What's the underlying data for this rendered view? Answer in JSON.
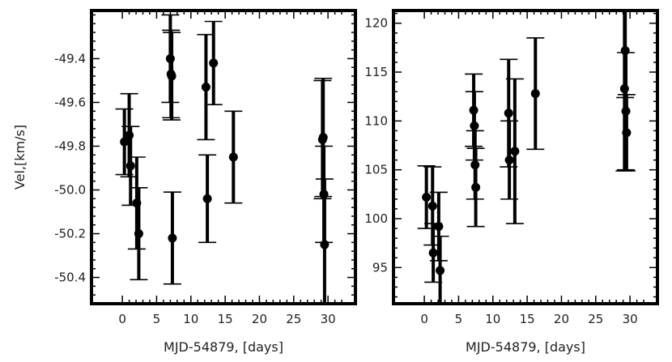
{
  "chart_data": [
    {
      "type": "scatter",
      "ylabel": "Vel,[km/s]",
      "xlabel": "MJD-54879, [days]",
      "xlim": [
        -4.5,
        34
      ],
      "ylim": [
        -50.52,
        -49.18
      ],
      "xticks": [
        0,
        5,
        10,
        15,
        20,
        25,
        30
      ],
      "yticks": [
        -50.4,
        -50.2,
        -50.0,
        -49.8,
        -49.6,
        -49.4
      ],
      "ytick_labels": [
        "-50.4",
        "-50.2",
        "-50.0",
        "-49.8",
        "-49.6",
        "-49.4"
      ],
      "error_bars": true,
      "points": [
        {
          "x": 0.3,
          "y": -49.78,
          "err": 0.15
        },
        {
          "x": 1.0,
          "y": -49.75,
          "err": 0.19
        },
        {
          "x": 1.2,
          "y": -49.89,
          "err": 0.18
        },
        {
          "x": 2.1,
          "y": -50.06,
          "err": 0.21
        },
        {
          "x": 2.4,
          "y": -50.2,
          "err": 0.21
        },
        {
          "x": 7.0,
          "y": -49.4,
          "err": 0.2
        },
        {
          "x": 7.1,
          "y": -49.47,
          "err": 0.2
        },
        {
          "x": 7.2,
          "y": -49.48,
          "err": 0.2
        },
        {
          "x": 7.3,
          "y": -50.22,
          "err": 0.21
        },
        {
          "x": 12.2,
          "y": -49.53,
          "err": 0.24
        },
        {
          "x": 12.4,
          "y": -50.04,
          "err": 0.2
        },
        {
          "x": 13.3,
          "y": -49.42,
          "err": 0.19
        },
        {
          "x": 16.2,
          "y": -49.85,
          "err": 0.21
        },
        {
          "x": 29.2,
          "y": -49.77,
          "err": 0.27
        },
        {
          "x": 29.3,
          "y": -49.76,
          "err": 0.27
        },
        {
          "x": 29.4,
          "y": -50.02,
          "err": 0.22
        },
        {
          "x": 29.5,
          "y": -50.25,
          "err": 0.3
        }
      ]
    },
    {
      "type": "scatter",
      "ylabel": "",
      "xlabel": "MJD-54879, [days]",
      "xlim": [
        -4.5,
        34
      ],
      "ylim": [
        91.3,
        121.3
      ],
      "xticks": [
        0,
        5,
        10,
        15,
        20,
        25,
        30
      ],
      "yticks": [
        95,
        100,
        105,
        110,
        115,
        120
      ],
      "ytick_labels": [
        "95",
        "100",
        "105",
        "110",
        "115",
        "120"
      ],
      "error_bars": true,
      "points": [
        {
          "x": 0.3,
          "y": 102.2,
          "err": 3.2
        },
        {
          "x": 1.2,
          "y": 101.3,
          "err": 4.0
        },
        {
          "x": 1.3,
          "y": 96.5,
          "err": 3.0
        },
        {
          "x": 2.1,
          "y": 99.2,
          "err": 3.5
        },
        {
          "x": 2.3,
          "y": 94.7,
          "err": 3.5
        },
        {
          "x": 7.2,
          "y": 111.1,
          "err": 3.7
        },
        {
          "x": 7.3,
          "y": 109.5,
          "err": 3.5
        },
        {
          "x": 7.4,
          "y": 105.5,
          "err": 3.5
        },
        {
          "x": 7.5,
          "y": 103.2,
          "err": 4.0
        },
        {
          "x": 12.3,
          "y": 110.8,
          "err": 5.5
        },
        {
          "x": 12.4,
          "y": 106.0,
          "err": 4.0
        },
        {
          "x": 13.2,
          "y": 106.9,
          "err": 7.4
        },
        {
          "x": 16.2,
          "y": 112.8,
          "err": 5.7
        },
        {
          "x": 29.2,
          "y": 113.3,
          "err": 8.4
        },
        {
          "x": 29.3,
          "y": 117.2,
          "err": 4.8
        },
        {
          "x": 29.4,
          "y": 111.0,
          "err": 6.0
        },
        {
          "x": 29.5,
          "y": 108.8,
          "err": 3.9
        }
      ]
    }
  ]
}
